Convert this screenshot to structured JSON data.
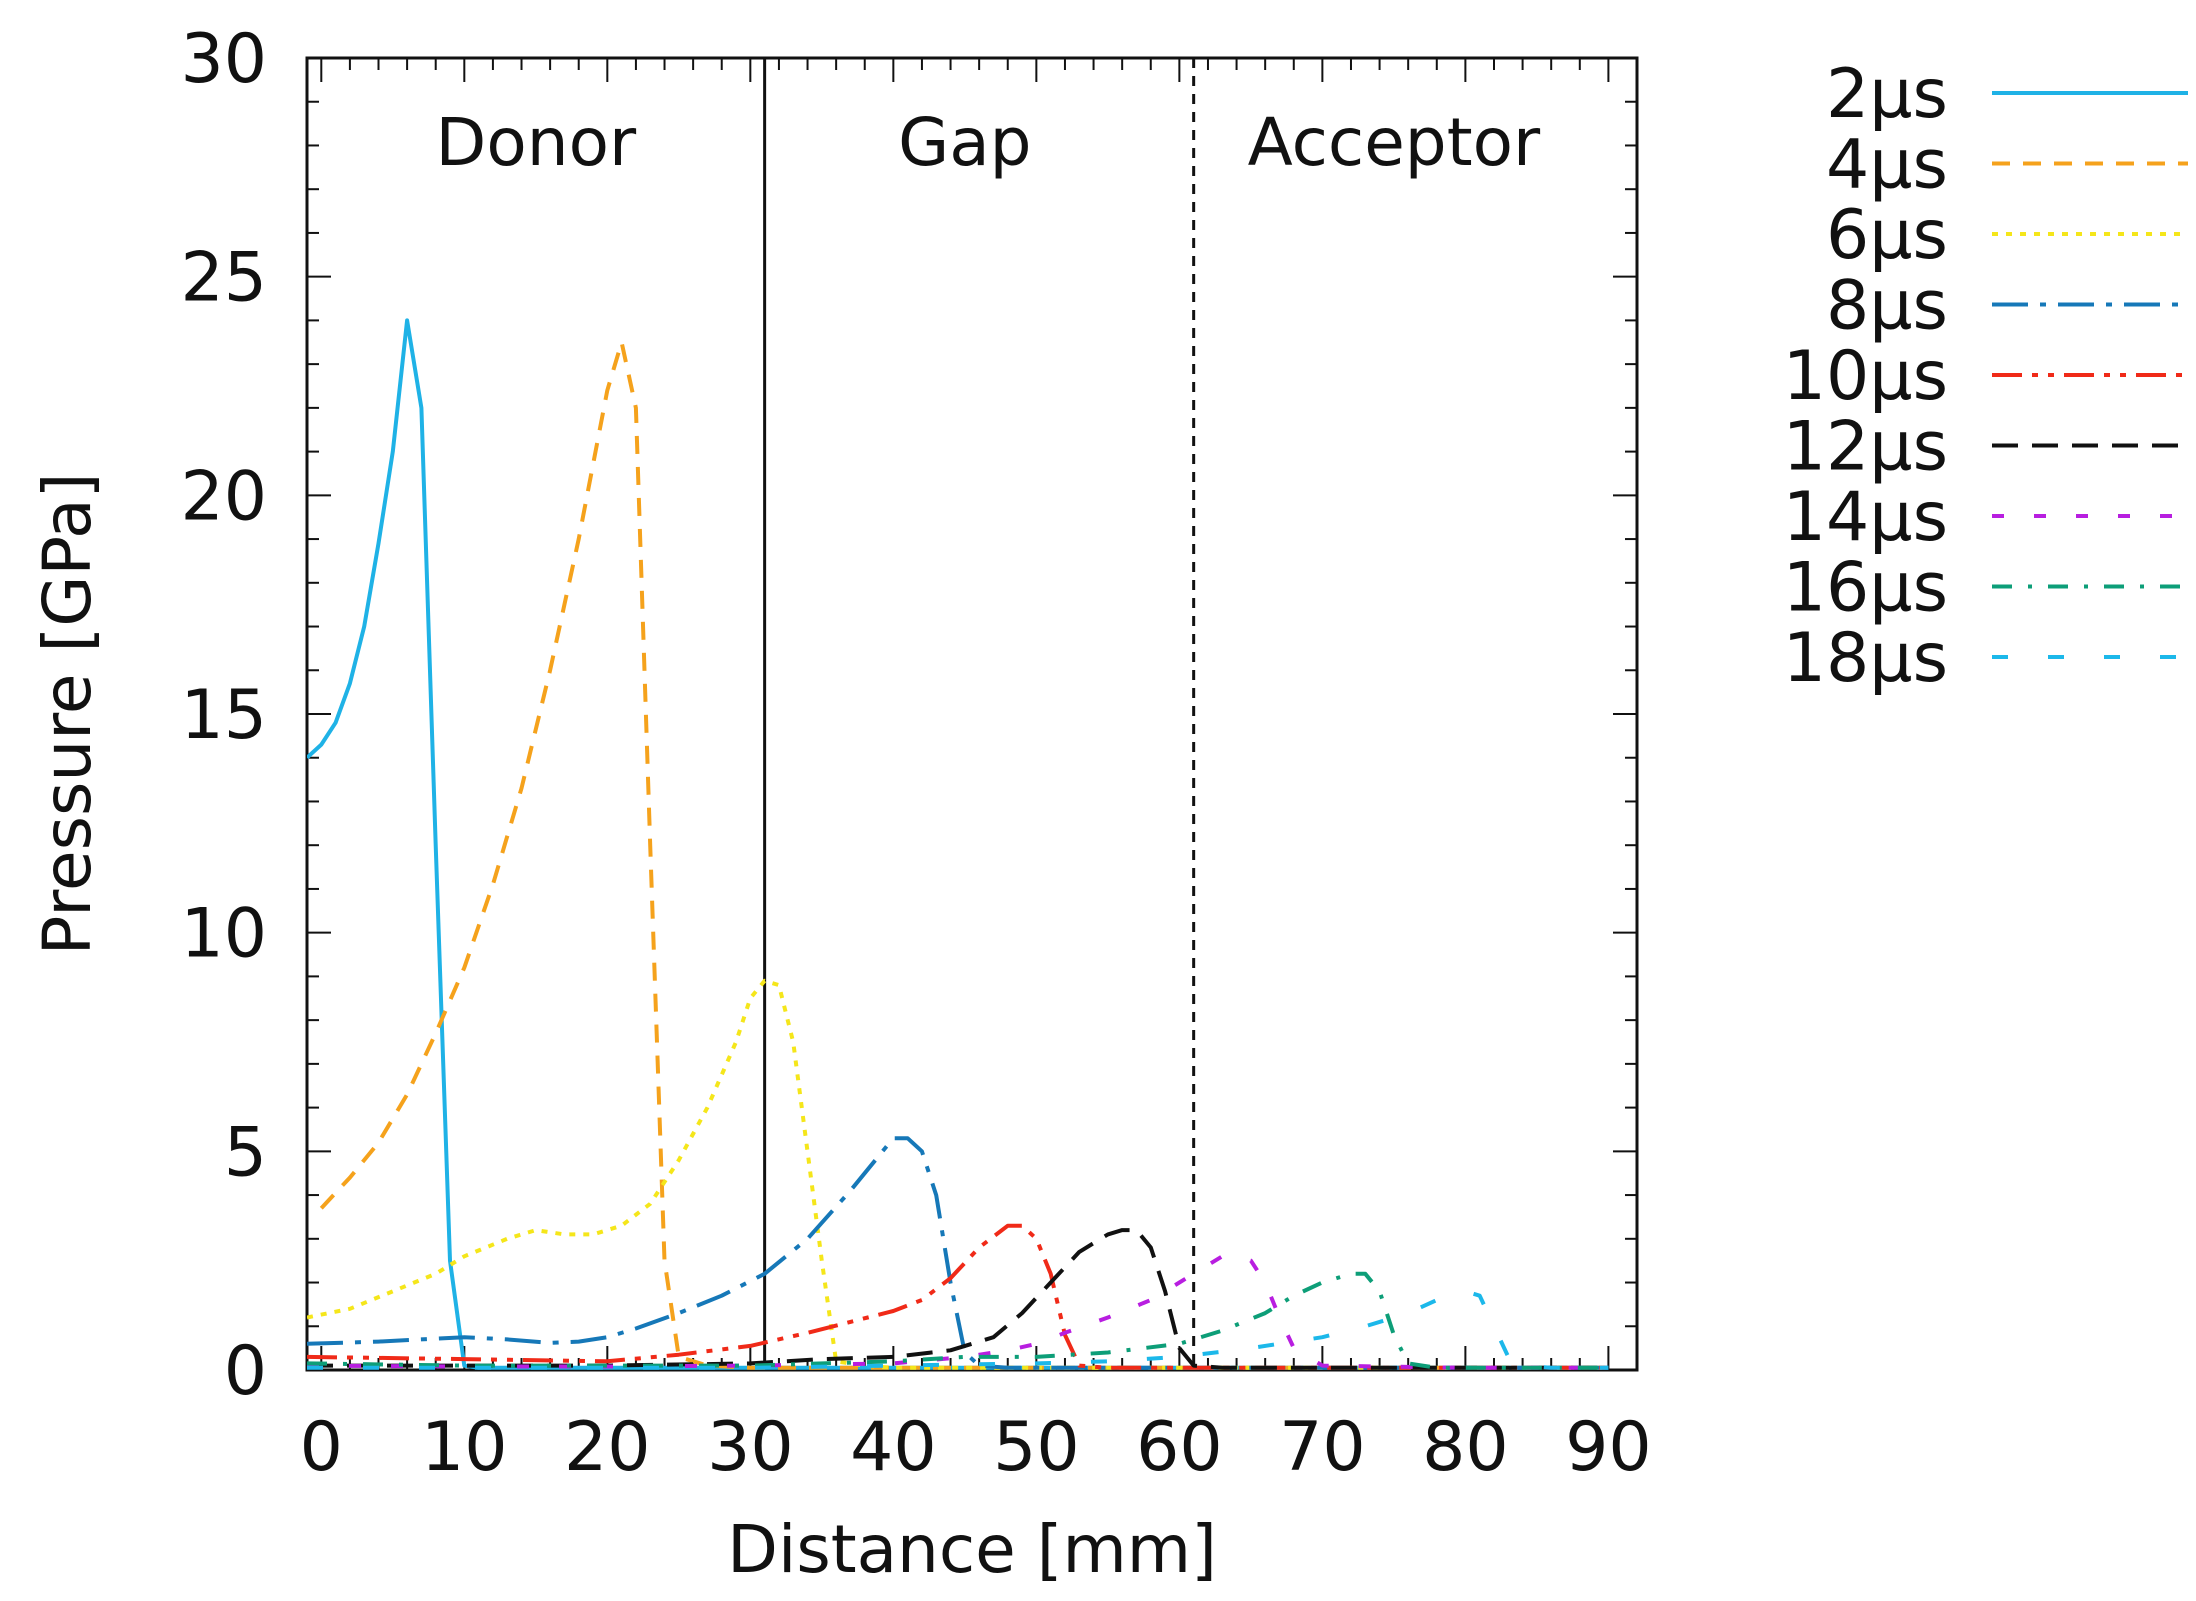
{
  "chart_data": {
    "type": "line",
    "title": "",
    "xlabel": "Distance [mm]",
    "ylabel": "Pressure [GPa]",
    "xlim": [
      -1,
      92
    ],
    "ylim": [
      0,
      30
    ],
    "xticks": [
      0,
      10,
      20,
      30,
      40,
      50,
      60,
      70,
      80,
      90
    ],
    "yticks": [
      0,
      5,
      10,
      15,
      20,
      25,
      30
    ],
    "legend_position": "outside-right",
    "regions": [
      {
        "label": "Donor",
        "x_center": 15
      },
      {
        "label": "Gap",
        "x_center": 45
      },
      {
        "label": "Acceptor",
        "x_center": 75
      }
    ],
    "boundaries": [
      {
        "x": 31,
        "style": "solid"
      },
      {
        "x": 61,
        "style": "dashed"
      }
    ],
    "series": [
      {
        "name": "2μs",
        "color": "#1fb2e6",
        "dash": "none",
        "x": [
          -1,
          0,
          1,
          2,
          3,
          4,
          5,
          6,
          7,
          8,
          9,
          10,
          11,
          20,
          30,
          40,
          50,
          60,
          70,
          80,
          90
        ],
        "y": [
          14,
          14.3,
          14.8,
          15.7,
          17.0,
          18.9,
          21.0,
          24.0,
          22.0,
          12.0,
          2.5,
          0.1,
          0.05,
          0.05,
          0.05,
          0.05,
          0.05,
          0.05,
          0.05,
          0.05,
          0.05
        ]
      },
      {
        "name": "4μs",
        "color": "#f5a21c",
        "dash": "18,13",
        "x": [
          0,
          2,
          4,
          6,
          8,
          10,
          12,
          14,
          16,
          18,
          20,
          21,
          22,
          23,
          24,
          25,
          27,
          30,
          40,
          50,
          60,
          70,
          80,
          90
        ],
        "y": [
          3.7,
          4.4,
          5.2,
          6.3,
          7.7,
          9.2,
          11.1,
          13.3,
          16.0,
          19.0,
          22.4,
          23.5,
          22.0,
          12.0,
          2.5,
          0.3,
          0.1,
          0.05,
          0.05,
          0.05,
          0.05,
          0.05,
          0.05,
          0.05
        ]
      },
      {
        "name": "6μs",
        "color": "#f5e61a",
        "dash": "6,8",
        "x": [
          -1,
          2,
          5,
          8,
          10,
          13,
          15,
          17,
          19,
          21,
          23,
          25,
          27,
          29,
          30,
          31,
          32,
          33,
          34,
          35,
          36,
          38,
          40,
          50,
          60,
          70,
          80,
          90
        ],
        "y": [
          1.2,
          1.4,
          1.8,
          2.2,
          2.6,
          3.0,
          3.2,
          3.1,
          3.1,
          3.3,
          3.8,
          4.8,
          6.0,
          7.5,
          8.5,
          8.9,
          8.8,
          7.5,
          5.0,
          2.5,
          0.2,
          0.1,
          0.05,
          0.05,
          0.05,
          0.05,
          0.05,
          0.05
        ]
      },
      {
        "name": "8μs",
        "color": "#1678b8",
        "dash": "36,12,6,12",
        "x": [
          -1,
          4,
          10,
          13,
          16,
          18,
          20,
          22,
          25,
          28,
          31,
          34,
          37,
          39,
          40,
          41,
          42,
          43,
          44,
          45,
          46,
          48,
          50,
          60,
          70,
          80,
          90
        ],
        "y": [
          0.6,
          0.65,
          0.75,
          0.7,
          0.62,
          0.65,
          0.75,
          0.95,
          1.3,
          1.7,
          2.2,
          3.0,
          4.1,
          4.9,
          5.3,
          5.3,
          5.0,
          4.0,
          2.0,
          0.4,
          0.1,
          0.05,
          0.05,
          0.05,
          0.05,
          0.05,
          0.05
        ]
      },
      {
        "name": "10μs",
        "color": "#f02a18",
        "dash": "30,10,6,10,6,10",
        "x": [
          -1,
          10,
          20,
          25,
          30,
          34,
          37,
          40,
          42,
          44,
          46,
          48,
          49,
          50,
          51,
          52,
          53,
          55,
          60,
          70,
          80,
          90
        ],
        "y": [
          0.3,
          0.25,
          0.2,
          0.35,
          0.55,
          0.85,
          1.1,
          1.35,
          1.6,
          2.1,
          2.8,
          3.3,
          3.3,
          3.0,
          2.2,
          0.8,
          0.1,
          0.05,
          0.05,
          0.05,
          0.05,
          0.05
        ]
      },
      {
        "name": "12μs",
        "color": "#111111",
        "dash": "26,14",
        "x": [
          -1,
          10,
          20,
          30,
          35,
          40,
          44,
          47,
          49,
          51,
          53,
          55,
          56,
          57,
          58,
          59,
          60,
          61,
          63,
          70,
          80,
          90
        ],
        "y": [
          0.1,
          0.1,
          0.1,
          0.15,
          0.25,
          0.3,
          0.45,
          0.75,
          1.3,
          2.0,
          2.7,
          3.1,
          3.2,
          3.2,
          2.8,
          1.8,
          0.5,
          0.1,
          0.05,
          0.05,
          0.05,
          0.05
        ]
      },
      {
        "name": "14μs",
        "color": "#b81ee0",
        "dash": "12,30",
        "x": [
          -1,
          10,
          20,
          30,
          40,
          45,
          48,
          50,
          52,
          55,
          58,
          60,
          62,
          63,
          64,
          65,
          66,
          67,
          68,
          70,
          80,
          90
        ],
        "y": [
          0.1,
          0.08,
          0.08,
          0.1,
          0.15,
          0.3,
          0.45,
          0.6,
          0.85,
          1.2,
          1.6,
          2.0,
          2.4,
          2.6,
          2.6,
          2.5,
          2.0,
          1.2,
          0.5,
          0.1,
          0.05,
          0.05
        ]
      },
      {
        "name": "16μs",
        "color": "#0d9e78",
        "dash": "20,16,4,16",
        "x": [
          -1,
          10,
          20,
          30,
          40,
          45,
          50,
          55,
          60,
          63,
          66,
          68,
          70,
          72,
          73,
          74,
          75,
          76,
          78,
          80,
          90
        ],
        "y": [
          0.15,
          0.1,
          0.1,
          0.1,
          0.2,
          0.3,
          0.3,
          0.4,
          0.6,
          0.9,
          1.3,
          1.7,
          2.0,
          2.2,
          2.2,
          1.8,
          0.8,
          0.15,
          0.05,
          0.05,
          0.05
        ]
      },
      {
        "name": "18μs",
        "color": "#1cb8ea",
        "dash": "16,40",
        "x": [
          -1,
          10,
          20,
          30,
          40,
          50,
          55,
          60,
          65,
          70,
          73,
          76,
          78,
          80,
          81,
          82,
          83,
          84,
          86,
          90
        ],
        "y": [
          0.05,
          0.05,
          0.05,
          0.05,
          0.1,
          0.15,
          0.2,
          0.3,
          0.5,
          0.75,
          1.0,
          1.3,
          1.6,
          1.8,
          1.7,
          1.0,
          0.3,
          0.1,
          0.05,
          0.05
        ]
      }
    ]
  }
}
